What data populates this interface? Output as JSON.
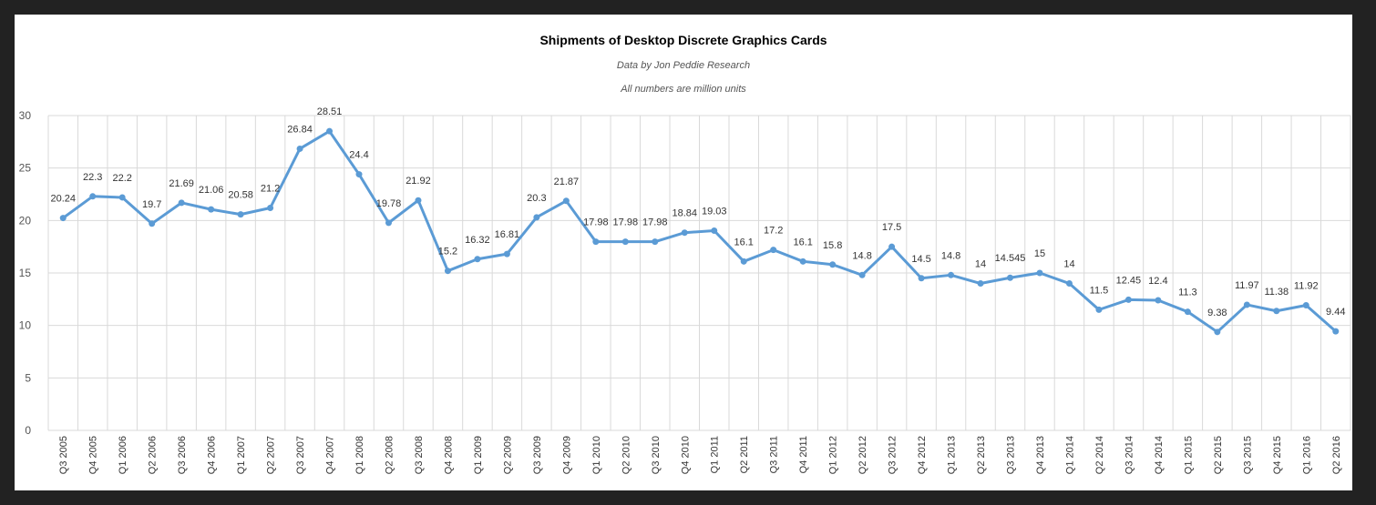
{
  "chart_data": {
    "type": "line",
    "title": "Shipments of Desktop Discrete Graphics Cards",
    "subtitles": [
      "Data by Jon Peddie Research",
      "All numbers are million units"
    ],
    "xlabel": "",
    "ylabel": "",
    "ylim": [
      0,
      30
    ],
    "yticks": [
      0,
      5,
      10,
      15,
      20,
      25,
      30
    ],
    "grid": true,
    "line_color": "#5b9bd5",
    "categories": [
      "Q3 2005",
      "Q4 2005",
      "Q1 2006",
      "Q2 2006",
      "Q3 2006",
      "Q4 2006",
      "Q1 2007",
      "Q2 2007",
      "Q3 2007",
      "Q4 2007",
      "Q1 2008",
      "Q2 2008",
      "Q3 2008",
      "Q4 2008",
      "Q1 2009",
      "Q2 2009",
      "Q3 2009",
      "Q4 2009",
      "Q1 2010",
      "Q2 2010",
      "Q3 2010",
      "Q4 2010",
      "Q1 2011",
      "Q2 2011",
      "Q3 2011",
      "Q4 2011",
      "Q1 2012",
      "Q2 2012",
      "Q3 2012",
      "Q4 2012",
      "Q1 2013",
      "Q2 2013",
      "Q3 2013",
      "Q4 2013",
      "Q1 2014",
      "Q2 2014",
      "Q3 2014",
      "Q4 2014",
      "Q1 2015",
      "Q2 2015",
      "Q3 2015",
      "Q4 2015",
      "Q1 2016",
      "Q2 2016"
    ],
    "values": [
      20.24,
      22.3,
      22.2,
      19.7,
      21.69,
      21.06,
      20.58,
      21.2,
      26.84,
      28.51,
      24.4,
      19.78,
      21.92,
      15.2,
      16.32,
      16.81,
      20.3,
      21.87,
      17.98,
      17.98,
      17.98,
      18.84,
      19.03,
      16.1,
      17.2,
      16.1,
      15.8,
      14.8,
      17.5,
      14.5,
      14.8,
      14,
      14.545,
      15,
      14,
      11.5,
      12.45,
      12.4,
      11.3,
      9.38,
      11.97,
      11.38,
      11.92,
      9.44
    ],
    "labels": [
      "20.24",
      "22.3",
      "22.2",
      "19.7",
      "21.69",
      "21.06",
      "20.58",
      "21.2",
      "26.84",
      "28.51",
      "24.4",
      "19.78",
      "21.92",
      "15.2",
      "16.32",
      "16.81",
      "20.3",
      "21.87",
      "17.98",
      "17.98",
      "17.98",
      "18.84",
      "19.03",
      "16.1",
      "17.2",
      "16.1",
      "15.8",
      "14.8",
      "17.5",
      "14.5",
      "14.8",
      "14",
      "14.545",
      "15",
      "14",
      "11.5",
      "12.45",
      "12.4",
      "11.3",
      "9.38",
      "11.97",
      "11.38",
      "11.92",
      "9.44"
    ]
  }
}
